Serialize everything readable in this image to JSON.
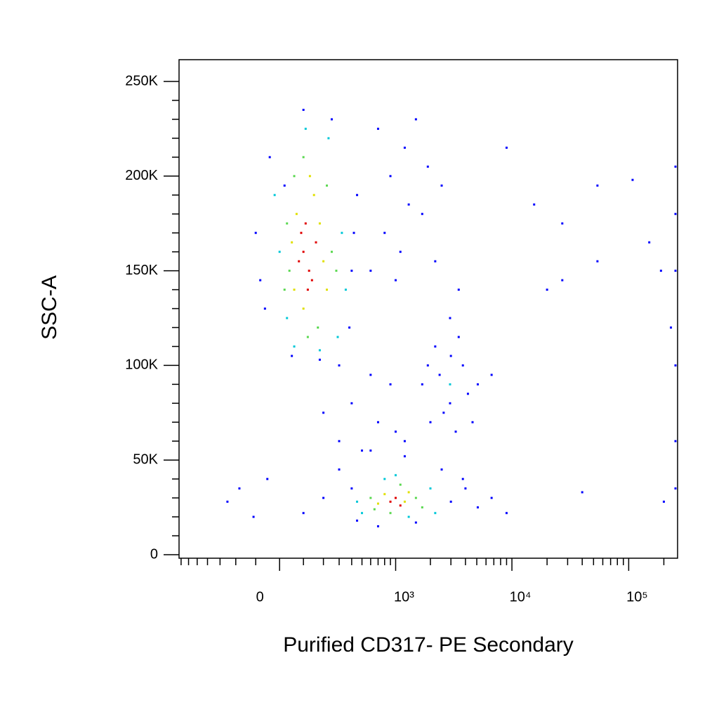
{
  "chart_data": {
    "type": "scatter",
    "x_label": "Purified CD317- PE Secondary",
    "y_label": "SSC-A",
    "xscale": "biexponential",
    "xlim": [
      -730,
      262144
    ],
    "ylim": [
      -1850,
      261500
    ],
    "xticks": [
      0,
      {
        "value": 1000,
        "label": "10³"
      },
      {
        "value": 10000,
        "label": "10⁴"
      },
      {
        "value": 100000,
        "label": "10⁵"
      }
    ],
    "xminorticks": [
      -700,
      -600,
      -500,
      -400,
      -300,
      -200,
      -100,
      100,
      200,
      300,
      400,
      500,
      600,
      700,
      800,
      900,
      2000,
      3000,
      4000,
      5000,
      6000,
      7000,
      8000,
      9000,
      20000,
      30000,
      40000,
      50000,
      60000,
      70000,
      80000,
      90000,
      200000
    ],
    "yticks": [
      0,
      {
        "value": 50000,
        "label": "50K"
      },
      {
        "value": 100000,
        "label": "100K"
      },
      {
        "value": 150000,
        "label": "150K"
      },
      {
        "value": 200000,
        "label": "200K"
      },
      {
        "value": 250000,
        "label": "250K"
      }
    ],
    "yminorticks": [
      10000,
      20000,
      30000,
      40000,
      60000,
      70000,
      80000,
      90000,
      110000,
      120000,
      130000,
      140000,
      160000,
      170000,
      180000,
      190000,
      210000,
      220000,
      230000,
      240000
    ],
    "series": [
      {
        "color": "#0000ff",
        "x": [
          -100,
          -60,
          400,
          450,
          -40,
          380,
          100,
          50,
          250,
          -80,
          300,
          180,
          20,
          420,
          700,
          900,
          1200,
          1500,
          1700,
          800,
          1100,
          1900,
          2500,
          3500,
          1000,
          1300,
          600,
          2200,
          1700,
          2200,
          2950,
          3800,
          5100,
          2600,
          3300,
          4200,
          1900,
          2400,
          3500,
          4600,
          6700,
          2950,
          2000,
          3000,
          -250,
          -180,
          -110,
          -50,
          100,
          200,
          300,
          450,
          3000,
          4000,
          5100,
          6700,
          9000,
          700,
          1500,
          2500,
          600,
          1200,
          3800,
          400,
          300,
          400,
          500,
          700,
          900,
          1200,
          200,
          600,
          1000,
          9000,
          15500,
          27000,
          54000,
          108000,
          189000,
          27000,
          54000,
          150000,
          40000,
          200000,
          230000,
          20000,
          262000,
          262000,
          262000,
          262000,
          262000,
          262000
        ],
        "values": [
          170000,
          130000,
          150000,
          190000,
          210000,
          120000,
          235000,
          105000,
          230000,
          145000,
          100000,
          103000,
          195000,
          170000,
          225000,
          200000,
          215000,
          230000,
          180000,
          170000,
          160000,
          205000,
          195000,
          140000,
          145000,
          185000,
          150000,
          155000,
          90000,
          110000,
          125000,
          100000,
          90000,
          75000,
          65000,
          85000,
          100000,
          95000,
          115000,
          70000,
          95000,
          80000,
          70000,
          105000,
          28000,
          35000,
          20000,
          40000,
          22000,
          30000,
          45000,
          18000,
          28000,
          35000,
          25000,
          30000,
          22000,
          15000,
          17000,
          45000,
          55000,
          52000,
          40000,
          35000,
          60000,
          80000,
          55000,
          70000,
          90000,
          60000,
          75000,
          95000,
          65000,
          215000,
          185000,
          175000,
          155000,
          198000,
          150000,
          145000,
          195000,
          165000,
          33000,
          28000,
          120000,
          140000,
          205000,
          180000,
          150000,
          100000,
          60000,
          35000
        ]
      },
      {
        "color": "#00c8d8",
        "x": [
          0,
          320,
          -20,
          350,
          110,
          60,
          230,
          30,
          290,
          180,
          450,
          2000,
          2200,
          500,
          800,
          1300,
          1000,
          2950
        ],
        "values": [
          160000,
          170000,
          190000,
          140000,
          225000,
          110000,
          220000,
          125000,
          115000,
          108000,
          28000,
          35000,
          22000,
          22000,
          40000,
          20000,
          42000,
          90000
        ]
      },
      {
        "color": "#5ad850",
        "x": [
          40,
          250,
          30,
          280,
          100,
          170,
          60,
          220,
          120,
          20,
          600,
          1500,
          1700,
          650,
          1100,
          900
        ],
        "values": [
          150000,
          160000,
          175000,
          150000,
          210000,
          120000,
          200000,
          195000,
          115000,
          140000,
          30000,
          30000,
          25000,
          24000,
          37000,
          22000
        ]
      },
      {
        "color": "#e0e000",
        "x": [
          70,
          180,
          60,
          200,
          150,
          50,
          100,
          130,
          220,
          800,
          1200,
          1300,
          700
        ],
        "values": [
          180000,
          175000,
          140000,
          155000,
          190000,
          165000,
          130000,
          200000,
          140000,
          32000,
          28000,
          33000,
          27000
        ]
      },
      {
        "color": "#e00000",
        "x": [
          100,
          126,
          90,
          140,
          110,
          80,
          160,
          120,
          900,
          1000,
          1100
        ],
        "values": [
          160000,
          150000,
          170000,
          145000,
          175000,
          155000,
          165000,
          140000,
          28000,
          30000,
          26000
        ]
      }
    ]
  }
}
